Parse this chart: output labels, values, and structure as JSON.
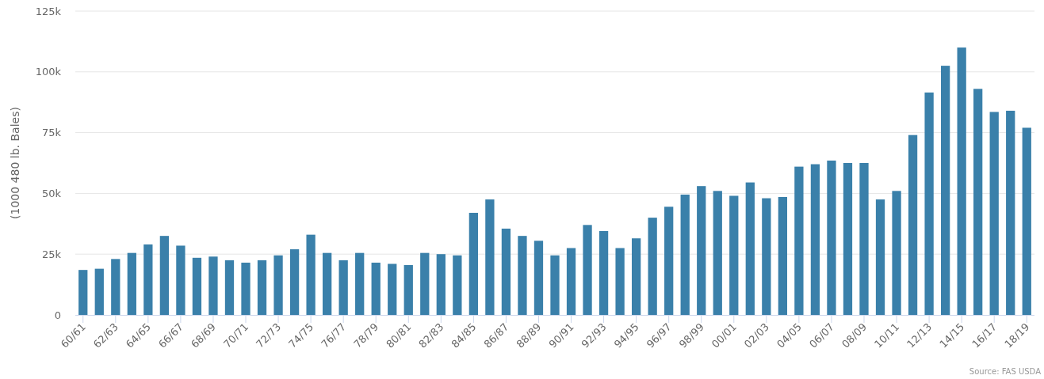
{
  "chart_data": {
    "type": "bar",
    "ylabel": "(1000 480 lb. Bales)",
    "annotations": [
      "Source: FAS USDA"
    ],
    "categories": [
      "60/61",
      null,
      "62/63",
      null,
      "64/65",
      null,
      "66/67",
      null,
      "68/69",
      null,
      "70/71",
      null,
      "72/73",
      null,
      "74/75",
      null,
      "76/77",
      null,
      "78/79",
      null,
      "80/81",
      null,
      "82/83",
      null,
      "84/85",
      null,
      "86/87",
      null,
      "88/89",
      null,
      "90/91",
      null,
      "92/93",
      null,
      "94/95",
      null,
      "96/97",
      null,
      "98/99",
      null,
      "00/01",
      null,
      "02/03",
      null,
      "04/05",
      null,
      "06/07",
      null,
      "08/09",
      null,
      "10/11",
      null,
      "12/13",
      null,
      "14/15",
      null,
      "16/17",
      null,
      "18/19"
    ],
    "values": [
      18.5,
      19,
      23,
      25.5,
      29,
      32.5,
      28.5,
      23.5,
      24,
      22.5,
      21.5,
      22.5,
      24.5,
      27,
      33,
      25.5,
      22.5,
      25.5,
      21.5,
      21,
      20.5,
      25.5,
      25,
      24.5,
      42,
      47.5,
      35.5,
      32.5,
      30.5,
      24.5,
      27.5,
      37,
      34.5,
      27.5,
      31.5,
      40,
      44.5,
      49.5,
      53,
      51,
      49,
      54.5,
      48,
      48.5,
      61,
      62,
      63.5,
      62.5,
      62.5,
      47.5,
      51,
      74,
      91.5,
      102.5,
      110,
      93,
      83.5,
      84,
      77
    ],
    "color": "#3a80aa",
    "ylim": [
      0,
      125
    ],
    "yticks": [
      {
        "value": 0,
        "label": "0"
      },
      {
        "value": 25,
        "label": "25k"
      },
      {
        "value": 50,
        "label": "50k"
      },
      {
        "value": 75,
        "label": "75k"
      },
      {
        "value": 100,
        "label": "100k"
      },
      {
        "value": 125,
        "label": "125k"
      }
    ],
    "grid": "y"
  }
}
